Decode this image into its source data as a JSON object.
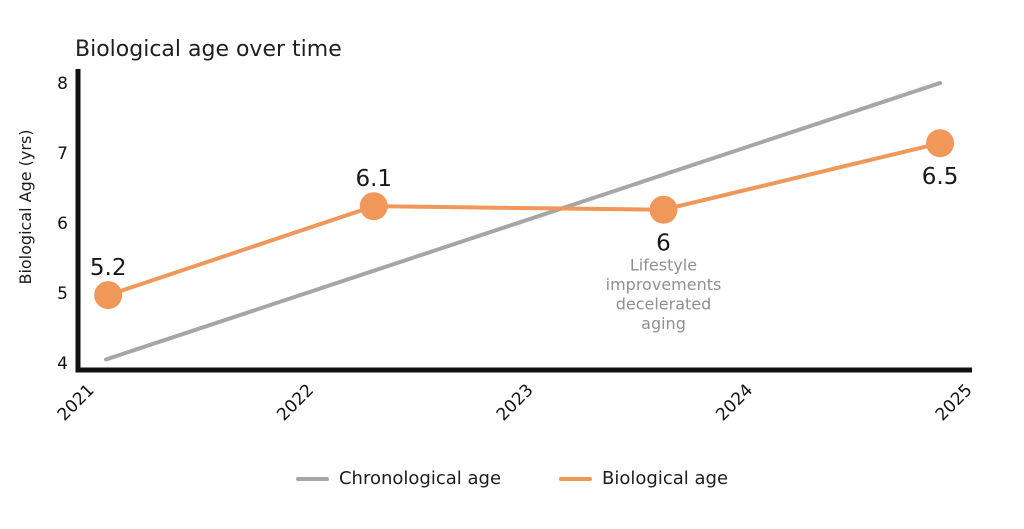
{
  "chart_data": {
    "type": "line",
    "title": "Biological age over time",
    "xlabel": "",
    "ylabel": "Biological Age (yrs)",
    "ylim": [
      4,
      8
    ],
    "yticks": [
      8,
      7,
      6,
      5,
      4
    ],
    "xticks": [
      2021,
      2022,
      2023,
      2024,
      2025
    ],
    "grid": false,
    "legend_position": "bottom-center",
    "series": [
      {
        "name": "Chronological age",
        "color": "#a6a6a6",
        "style": "straight-line",
        "x": [
          2021.05,
          2024.85
        ],
        "y": [
          4.05,
          8.0
        ]
      },
      {
        "name": "Biological age",
        "color": "#f0975a",
        "style": "line-with-markers",
        "values": [
          5.2,
          6.1,
          6,
          6.5
        ],
        "points": [
          {
            "x": 2021.06,
            "y": 5.2,
            "y_plot": 4.97,
            "label": "5.2",
            "label_pos": "above"
          },
          {
            "x": 2022.27,
            "y": 6.1,
            "y_plot": 6.24,
            "label": "6.1",
            "label_pos": "above"
          },
          {
            "x": 2023.59,
            "y": 6.0,
            "y_plot": 6.19,
            "label": "6",
            "label_pos": "below"
          },
          {
            "x": 2024.85,
            "y": 6.5,
            "y_plot": 7.14,
            "label": "6.5",
            "label_pos": "below"
          }
        ]
      }
    ],
    "annotation": {
      "text": "Lifestyle improvements decelerated aging",
      "lines": [
        "Lifestyle",
        "improvements",
        "decelerated",
        "aging"
      ],
      "attached_to": {
        "x": 2023.59,
        "y": 6.19
      },
      "color": "#909090"
    }
  },
  "legend": {
    "items": [
      {
        "label": "Chronological age",
        "color": "#a6a6a6"
      },
      {
        "label": "Biological age",
        "color": "#f0975a"
      }
    ]
  },
  "colors": {
    "axis": "#111111",
    "title_text": "#1f1f1f",
    "tick_text": "#111111",
    "annotation_text": "#909090",
    "background": "#ffffff"
  }
}
